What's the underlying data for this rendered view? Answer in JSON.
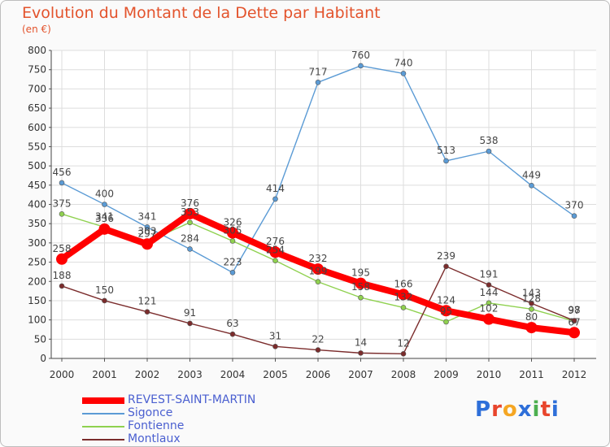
{
  "chart_data": {
    "type": "line",
    "title": "Evolution du Montant de la Dette par Habitant",
    "subtitle": "(en €)",
    "xlabel": "",
    "ylabel": "",
    "ylim": [
      0,
      800
    ],
    "yticks": [
      0,
      50,
      100,
      150,
      200,
      250,
      300,
      350,
      400,
      450,
      500,
      550,
      600,
      650,
      700,
      750,
      800
    ],
    "grid": true,
    "legend_position": "bottom-left",
    "categories": [
      "2000",
      "2001",
      "2002",
      "2003",
      "2004",
      "2005",
      "2006",
      "2007",
      "2008",
      "2009",
      "2010",
      "2011",
      "2012"
    ],
    "series": [
      {
        "name": "REVEST-SAINT-MARTIN",
        "color": "#ff0000",
        "values": [
          258,
          336,
          297,
          376,
          326,
          276,
          232,
          195,
          166,
          124,
          102,
          80,
          67
        ]
      },
      {
        "name": "Sigonce",
        "color": "#5b9bd5",
        "values": [
          456,
          400,
          341,
          284,
          223,
          414,
          717,
          760,
          740,
          513,
          538,
          449,
          370
        ]
      },
      {
        "name": "Fontienne",
        "color": "#8fd14f",
        "values": [
          375,
          341,
          303,
          353,
          305,
          254,
          199,
          158,
          132,
          95,
          144,
          128,
          97
        ]
      },
      {
        "name": "Montlaux",
        "color": "#7b2c2c",
        "values": [
          188,
          150,
          121,
          91,
          63,
          31,
          22,
          14,
          12,
          239,
          191,
          143,
          98
        ]
      }
    ]
  },
  "logo": {
    "text": "Proxiti",
    "colors": [
      "#2e6fd9",
      "#e8452c",
      "#f5a623",
      "#2e6fd9",
      "#4caf50",
      "#e8452c",
      "#2e6fd9"
    ]
  }
}
